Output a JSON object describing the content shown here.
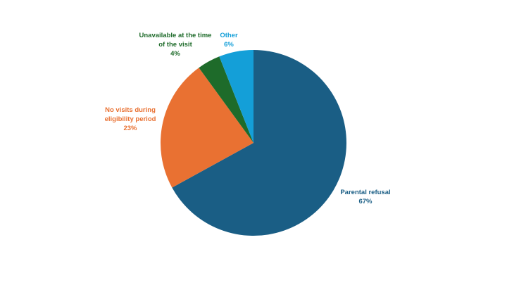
{
  "chart_data": {
    "type": "pie",
    "categories": [
      "Parental refusal",
      "No visits during eligibility period",
      "Unavailable at the time of the visit",
      "Other"
    ],
    "values": [
      67,
      23,
      4,
      6
    ],
    "value_labels": [
      "67%",
      "23%",
      "4%",
      "6%"
    ],
    "colors": [
      "#1a5e85",
      "#e97132",
      "#1e6b2a",
      "#149fd8"
    ]
  }
}
